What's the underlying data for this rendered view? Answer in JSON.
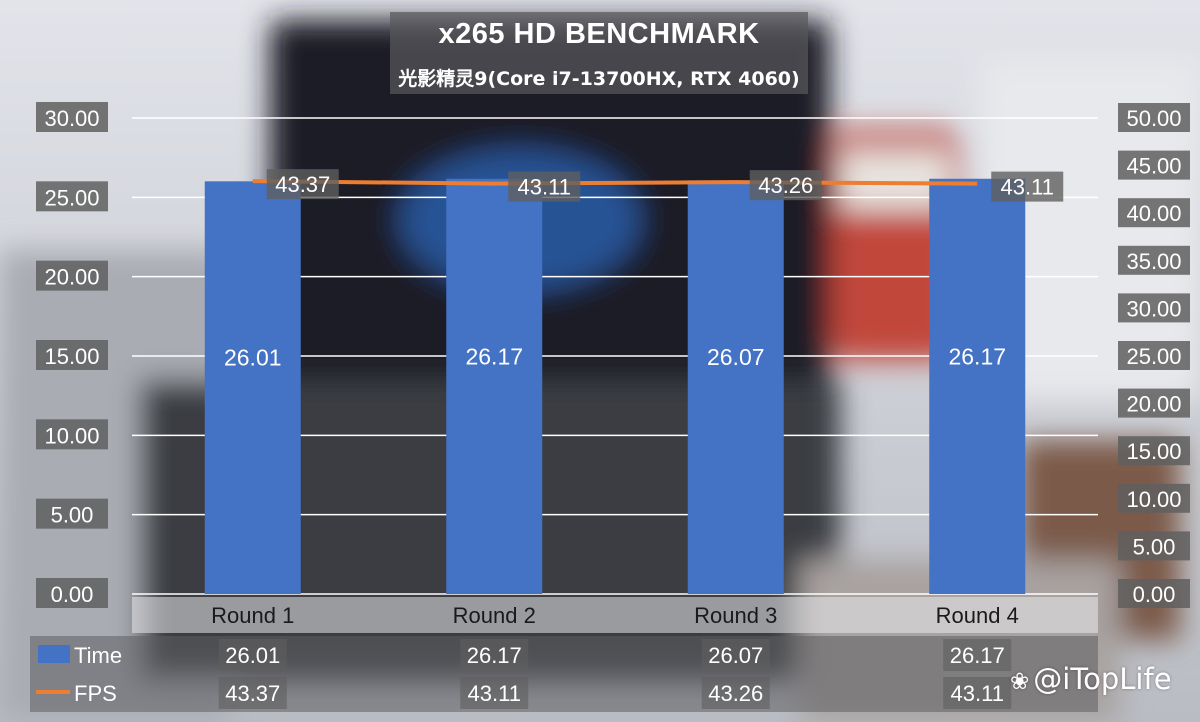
{
  "header": {
    "title": "x265 HD BENCHMARK",
    "subtitle": "光影精灵9(Core i7-13700HX, RTX 4060)"
  },
  "watermark": {
    "text": "@iTopLife",
    "icon": "weibo-icon"
  },
  "colors": {
    "bar": "#4472c4",
    "line": "#ed7d31",
    "label_bg": "#5f5f5f",
    "gridline": "#ffffff"
  },
  "chart_data": {
    "type": "bar",
    "categories": [
      "Round 1",
      "Round 2",
      "Round 3",
      "Round 4"
    ],
    "series": [
      {
        "name": "Time",
        "type": "bar",
        "axis": "left",
        "values": [
          26.01,
          26.17,
          26.07,
          26.17
        ]
      },
      {
        "name": "FPS",
        "type": "line",
        "axis": "right",
        "values": [
          43.37,
          43.11,
          43.26,
          43.11
        ]
      }
    ],
    "y_left": {
      "min": 0,
      "max": 30,
      "step": 5,
      "ticks": [
        "0.00",
        "5.00",
        "10.00",
        "15.00",
        "20.00",
        "25.00",
        "30.00"
      ]
    },
    "y_right": {
      "min": 0,
      "max": 50,
      "step": 5,
      "ticks": [
        "0.00",
        "5.00",
        "10.00",
        "15.00",
        "20.00",
        "25.00",
        "30.00",
        "35.00",
        "40.00",
        "45.00",
        "50.00"
      ]
    },
    "grid": true,
    "legend": "data-table-bottom",
    "table": {
      "rows": [
        {
          "label": "Time",
          "values": [
            "26.01",
            "26.17",
            "26.07",
            "26.17"
          ]
        },
        {
          "label": "FPS",
          "values": [
            "43.37",
            "43.11",
            "43.26",
            "43.11"
          ]
        }
      ]
    }
  }
}
